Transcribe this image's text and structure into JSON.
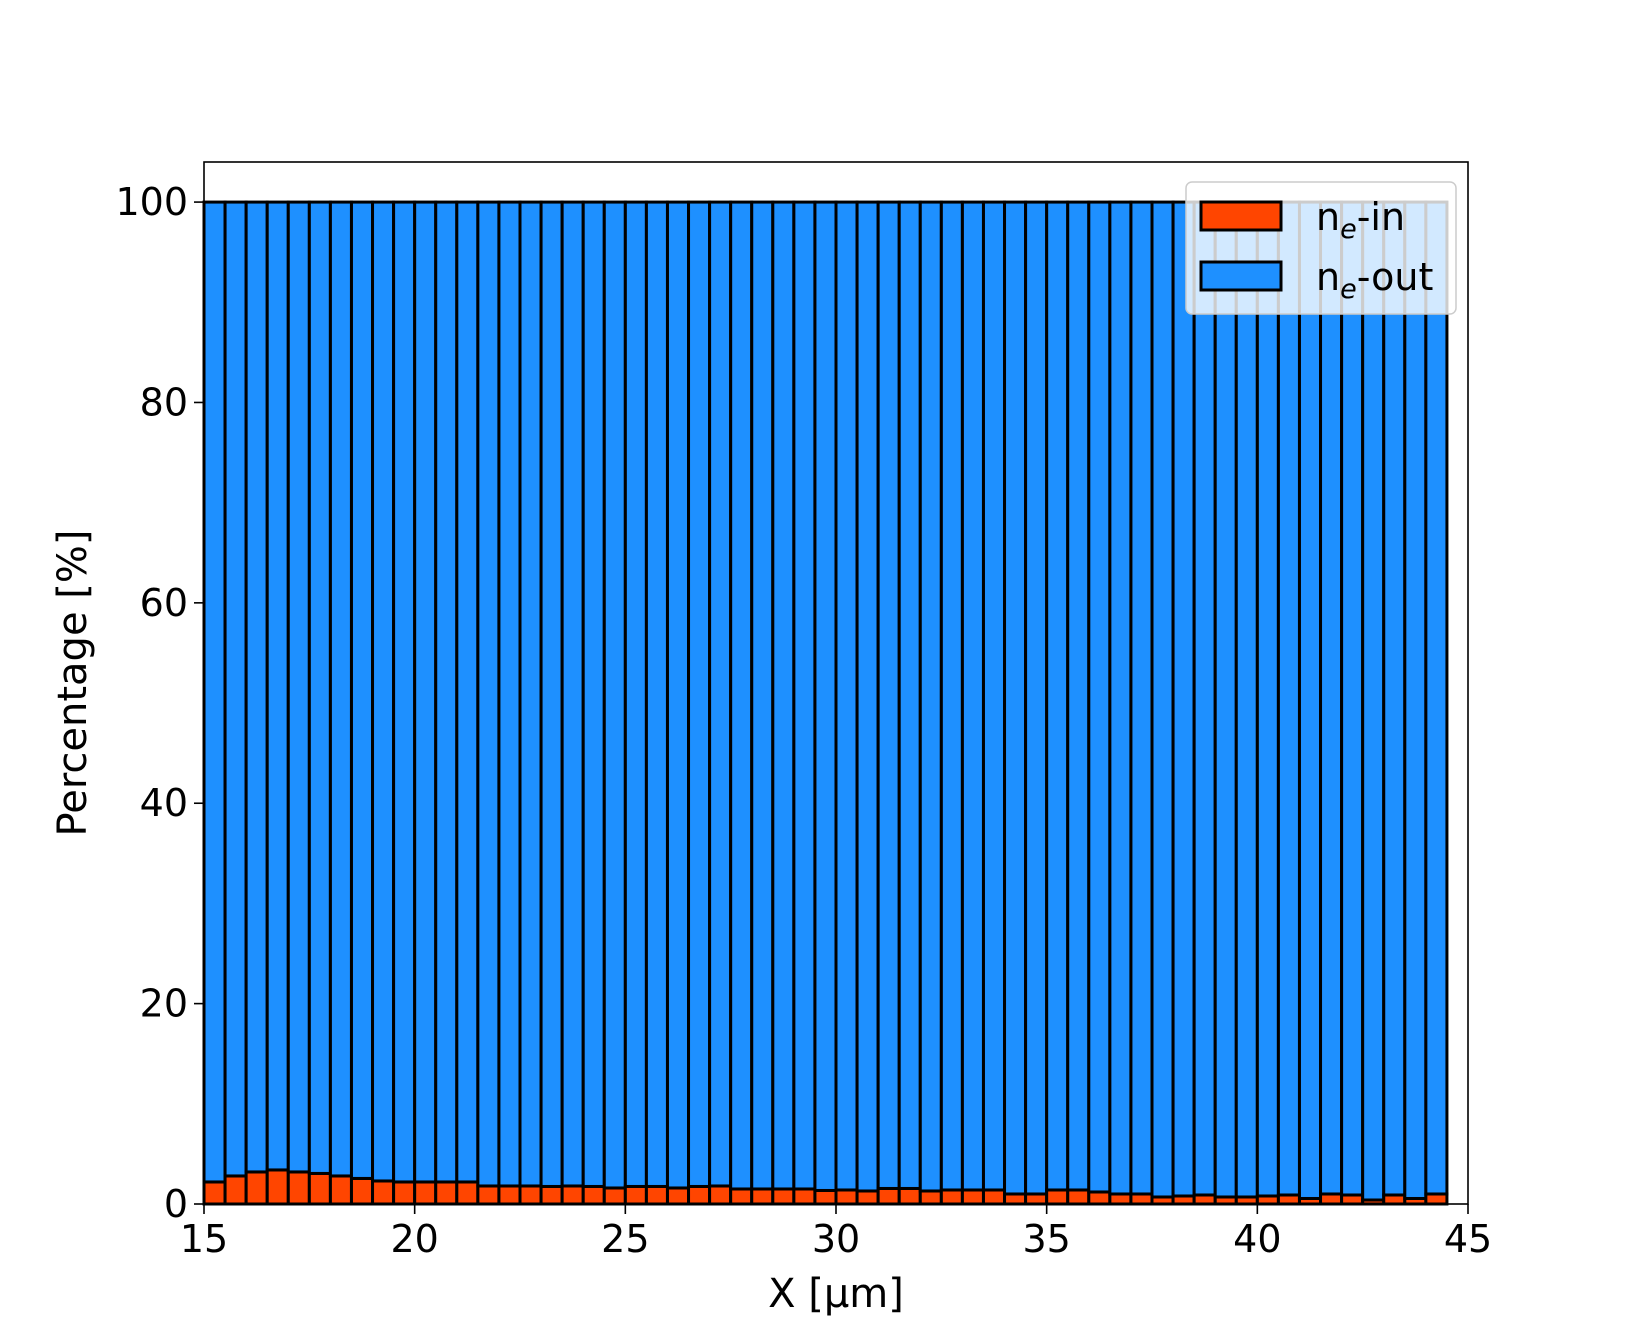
{
  "chart_data": {
    "type": "bar",
    "stacked": true,
    "title": "",
    "xlabel": "X  [μm]",
    "ylabel": "Percentage  [%]",
    "xlim": [
      15,
      45
    ],
    "ylim": [
      0,
      104
    ],
    "xticks": [
      "15",
      "20",
      "25",
      "30",
      "35",
      "40",
      "45"
    ],
    "yticks": [
      "0",
      "20",
      "40",
      "60",
      "80",
      "100"
    ],
    "grid": false,
    "legend_position": "top-right",
    "bar_width": 0.5,
    "x_start": 15,
    "series": [
      {
        "name": "n_e-in",
        "legend_base": "n",
        "legend_sub": "e",
        "legend_suffix": "-in",
        "color": "#FF4500",
        "values": [
          2.2,
          2.8,
          3.2,
          3.4,
          3.2,
          3.05,
          2.8,
          2.55,
          2.3,
          2.2,
          2.2,
          2.2,
          2.2,
          1.8,
          1.8,
          1.8,
          1.75,
          1.8,
          1.75,
          1.6,
          1.75,
          1.75,
          1.6,
          1.75,
          1.8,
          1.5,
          1.5,
          1.5,
          1.5,
          1.35,
          1.4,
          1.3,
          1.55,
          1.55,
          1.3,
          1.4,
          1.4,
          1.4,
          1.0,
          1.0,
          1.4,
          1.4,
          1.2,
          1.0,
          1.0,
          0.7,
          0.8,
          0.9,
          0.7,
          0.7,
          0.8,
          0.9,
          0.55,
          1.0,
          0.9,
          0.4,
          0.9,
          0.55,
          1.0
        ]
      },
      {
        "name": "n_e-out",
        "legend_base": "n",
        "legend_sub": "e",
        "legend_suffix": "-out",
        "color": "#1E90FF",
        "values": "remainder to 100"
      }
    ]
  }
}
